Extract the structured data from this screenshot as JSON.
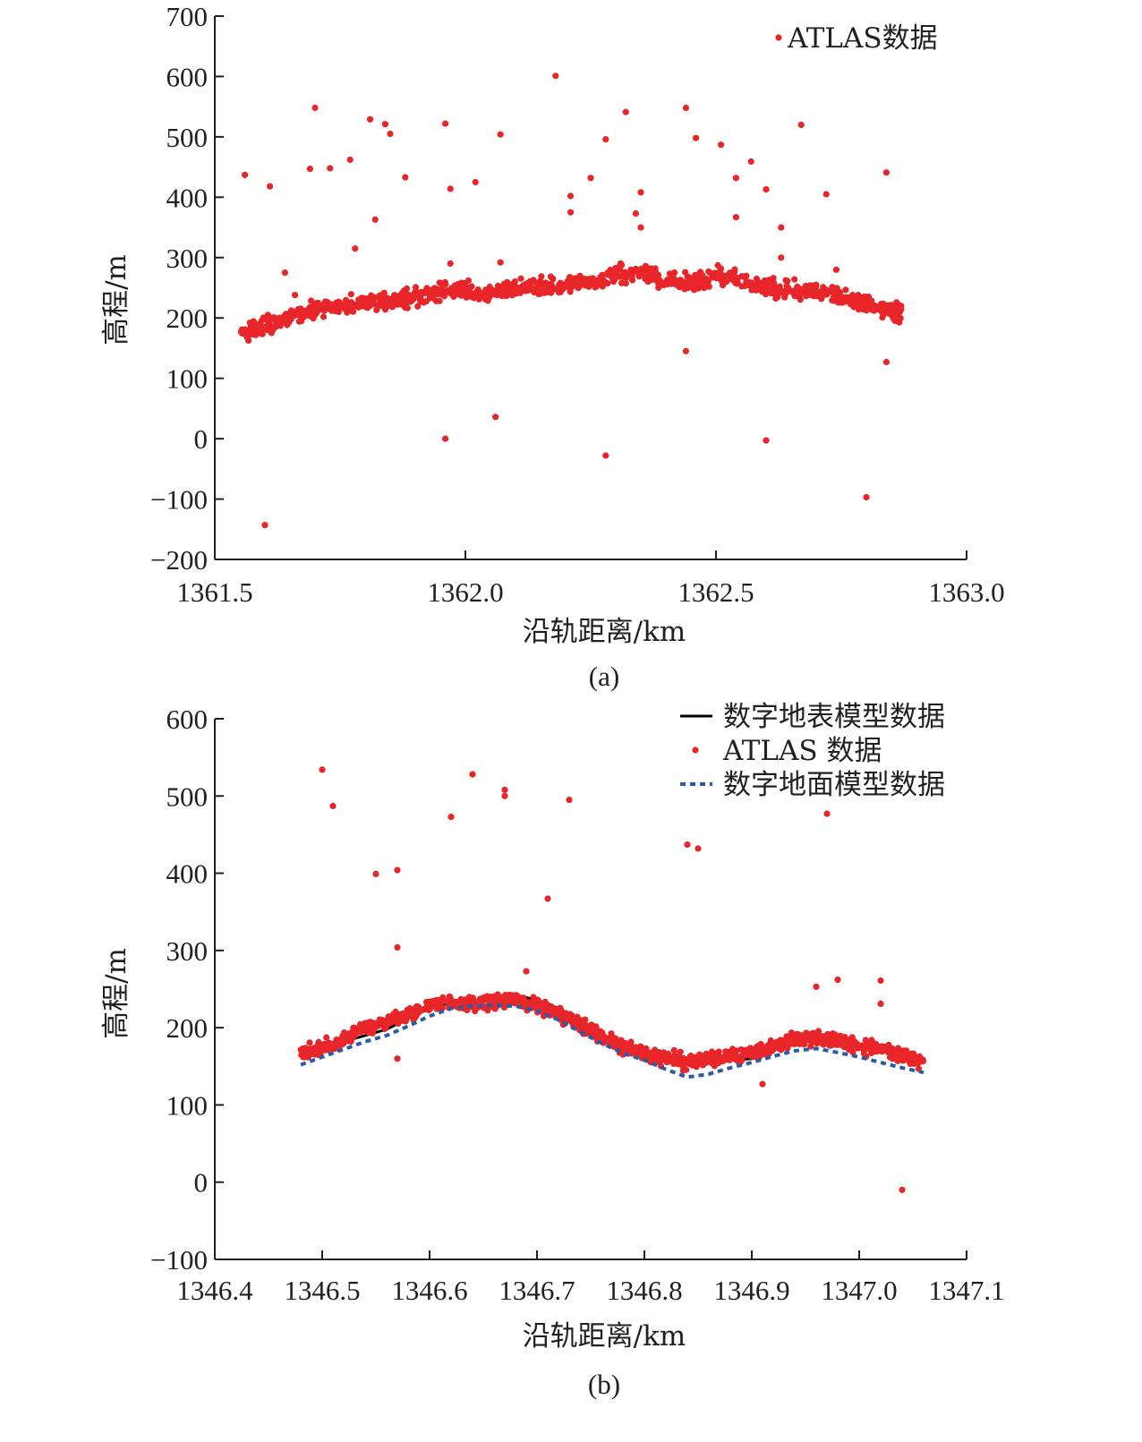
{
  "chart_data": [
    {
      "type": "scatter",
      "caption": "(a)",
      "xlabel": "沿轨距离/km",
      "ylabel": "高程/m",
      "xlim": [
        1361.5,
        1363.0
      ],
      "ylim": [
        -200,
        700
      ],
      "xticks": [
        "1361.5",
        "1362.0",
        "1362.5",
        "1363.0"
      ],
      "yticks": [
        "700",
        "600",
        "500",
        "400",
        "300",
        "200",
        "100",
        "0",
        "−100",
        "−200"
      ],
      "legend_position": "top-right",
      "colors": {
        "atlas": "#e8262a"
      },
      "series": [
        {
          "name": "ATLAS数据",
          "kind": "points",
          "ground_band": [
            [
              1361.55,
              175
            ],
            [
              1361.6,
              185
            ],
            [
              1361.65,
              203
            ],
            [
              1361.7,
              215
            ],
            [
              1361.75,
              222
            ],
            [
              1361.8,
              226
            ],
            [
              1361.85,
              228
            ],
            [
              1361.9,
              234
            ],
            [
              1361.95,
              242
            ],
            [
              1362.0,
              244
            ],
            [
              1362.05,
              244
            ],
            [
              1362.1,
              250
            ],
            [
              1362.15,
              252
            ],
            [
              1362.2,
              256
            ],
            [
              1362.25,
              258
            ],
            [
              1362.3,
              272
            ],
            [
              1362.35,
              277
            ],
            [
              1362.4,
              263
            ],
            [
              1362.45,
              255
            ],
            [
              1362.5,
              272
            ],
            [
              1362.55,
              265
            ],
            [
              1362.6,
              251
            ],
            [
              1362.65,
              246
            ],
            [
              1362.7,
              245
            ],
            [
              1362.75,
              232
            ],
            [
              1362.8,
              225
            ],
            [
              1362.85,
              212
            ],
            [
              1362.87,
              212
            ]
          ],
          "outliers": [
            [
              1361.56,
              437
            ],
            [
              1361.6,
              -143
            ],
            [
              1361.61,
              418
            ],
            [
              1361.64,
              275
            ],
            [
              1361.66,
              238
            ],
            [
              1361.69,
              447
            ],
            [
              1361.7,
              548
            ],
            [
              1361.73,
              448
            ],
            [
              1361.77,
              462
            ],
            [
              1361.78,
              315
            ],
            [
              1361.81,
              529
            ],
            [
              1361.82,
              363
            ],
            [
              1361.84,
              521
            ],
            [
              1361.85,
              505
            ],
            [
              1361.88,
              433
            ],
            [
              1361.96,
              522
            ],
            [
              1361.96,
              0
            ],
            [
              1361.97,
              414
            ],
            [
              1361.97,
              290
            ],
            [
              1362.02,
              425
            ],
            [
              1362.06,
              36
            ],
            [
              1362.07,
              504
            ],
            [
              1362.07,
              292
            ],
            [
              1362.18,
              601
            ],
            [
              1362.21,
              402
            ],
            [
              1362.21,
              375
            ],
            [
              1362.25,
              432
            ],
            [
              1362.28,
              496
            ],
            [
              1362.28,
              -28
            ],
            [
              1362.32,
              541
            ],
            [
              1362.35,
              408
            ],
            [
              1362.34,
              373
            ],
            [
              1362.35,
              350
            ],
            [
              1362.44,
              145
            ],
            [
              1362.44,
              548
            ],
            [
              1362.46,
              498
            ],
            [
              1362.51,
              487
            ],
            [
              1362.54,
              367
            ],
            [
              1362.54,
              432
            ],
            [
              1362.57,
              459
            ],
            [
              1362.6,
              -3
            ],
            [
              1362.6,
              413
            ],
            [
              1362.63,
              350
            ],
            [
              1362.63,
              300
            ],
            [
              1362.67,
              520
            ],
            [
              1362.72,
              405
            ],
            [
              1362.74,
              280
            ],
            [
              1362.8,
              -97
            ],
            [
              1362.84,
              127
            ],
            [
              1362.84,
              441
            ]
          ]
        }
      ]
    },
    {
      "type": "line",
      "caption": "(b)",
      "xlabel": "沿轨距离/km",
      "ylabel": "高程/m",
      "xlim": [
        1346.4,
        1347.1
      ],
      "ylim": [
        -100,
        600
      ],
      "xticks": [
        "1346.4",
        "1346.5",
        "1346.6",
        "1346.7",
        "1346.8",
        "1346.9",
        "1347.0",
        "1347.1"
      ],
      "yticks": [
        "600",
        "500",
        "400",
        "300",
        "200",
        "100",
        "0",
        "−100"
      ],
      "legend_position": "top-right",
      "colors": {
        "dsm": "#000000",
        "atlas": "#e8262a",
        "dtm": "#2b5ba8"
      },
      "series": [
        {
          "name": "数字地表模型数据",
          "kind": "line",
          "x": [
            1346.48,
            1346.5,
            1346.52,
            1346.54,
            1346.56,
            1346.58,
            1346.6,
            1346.62,
            1346.64,
            1346.66,
            1346.68,
            1346.7,
            1346.72,
            1346.74,
            1346.76,
            1346.78,
            1346.8,
            1346.82,
            1346.84,
            1346.86,
            1346.88,
            1346.9,
            1346.92,
            1346.94,
            1346.96,
            1346.98,
            1347.0,
            1347.02,
            1347.04,
            1347.06
          ],
          "y": [
            160,
            172,
            182,
            190,
            198,
            212,
            225,
            232,
            233,
            236,
            242,
            236,
            225,
            208,
            192,
            178,
            170,
            158,
            153,
            155,
            158,
            160,
            170,
            185,
            192,
            188,
            178,
            172,
            162,
            155
          ]
        },
        {
          "name": "ATLAS 数据",
          "kind": "points",
          "ground_band": [
            [
              1346.48,
              165
            ],
            [
              1346.5,
              175
            ],
            [
              1346.52,
              184
            ],
            [
              1346.54,
              198
            ],
            [
              1346.56,
              206
            ],
            [
              1346.58,
              218
            ],
            [
              1346.6,
              228
            ],
            [
              1346.62,
              232
            ],
            [
              1346.64,
              231
            ],
            [
              1346.66,
              234
            ],
            [
              1346.68,
              236
            ],
            [
              1346.7,
              230
            ],
            [
              1346.72,
              218
            ],
            [
              1346.74,
              204
            ],
            [
              1346.76,
              188
            ],
            [
              1346.78,
              176
            ],
            [
              1346.8,
              166
            ],
            [
              1346.82,
              160
            ],
            [
              1346.84,
              156
            ],
            [
              1346.86,
              160
            ],
            [
              1346.88,
              162
            ],
            [
              1346.9,
              166
            ],
            [
              1346.92,
              176
            ],
            [
              1346.94,
              185
            ],
            [
              1346.96,
              186
            ],
            [
              1346.98,
              184
            ],
            [
              1347.0,
              176
            ],
            [
              1347.02,
              172
            ],
            [
              1347.04,
              165
            ],
            [
              1347.06,
              155
            ]
          ],
          "outliers": [
            [
              1346.5,
              534
            ],
            [
              1346.51,
              487
            ],
            [
              1346.55,
              399
            ],
            [
              1346.57,
              404
            ],
            [
              1346.57,
              304
            ],
            [
              1346.57,
              160
            ],
            [
              1346.62,
              473
            ],
            [
              1346.64,
              528
            ],
            [
              1346.67,
              508
            ],
            [
              1346.67,
              500
            ],
            [
              1346.69,
              273
            ],
            [
              1346.71,
              367
            ],
            [
              1346.73,
              495
            ],
            [
              1346.84,
              437
            ],
            [
              1346.85,
              432
            ],
            [
              1346.91,
              127
            ],
            [
              1346.96,
              253
            ],
            [
              1346.97,
              477
            ],
            [
              1346.98,
              262
            ],
            [
              1347.02,
              261
            ],
            [
              1347.02,
              231
            ],
            [
              1347.04,
              -10
            ]
          ]
        },
        {
          "name": "数字地面模型数据",
          "kind": "line",
          "x": [
            1346.48,
            1346.5,
            1346.52,
            1346.54,
            1346.56,
            1346.58,
            1346.6,
            1346.62,
            1346.64,
            1346.66,
            1346.68,
            1346.7,
            1346.72,
            1346.74,
            1346.76,
            1346.78,
            1346.8,
            1346.82,
            1346.84,
            1346.86,
            1346.88,
            1346.9,
            1346.92,
            1346.94,
            1346.96,
            1346.98,
            1347.0,
            1347.02,
            1347.04,
            1347.06
          ],
          "y": [
            152,
            162,
            172,
            182,
            190,
            202,
            215,
            225,
            228,
            229,
            228,
            222,
            210,
            195,
            180,
            167,
            158,
            146,
            136,
            140,
            148,
            155,
            163,
            170,
            173,
            168,
            162,
            155,
            148,
            142
          ]
        }
      ]
    }
  ]
}
